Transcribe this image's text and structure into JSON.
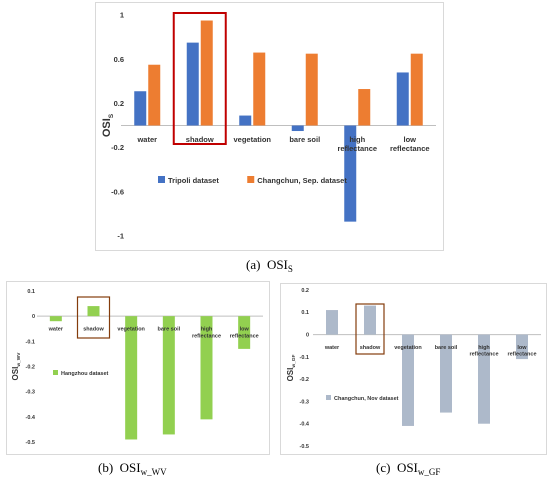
{
  "captions": {
    "a": {
      "label": "(a)",
      "text": "OSI",
      "sub": "S"
    },
    "b": {
      "label": "(b)",
      "text": "OSI",
      "sub": "w_WV"
    },
    "c": {
      "label": "(c)",
      "text": "OSI",
      "sub": "w_GF"
    }
  },
  "chart_data": [
    {
      "id": "a",
      "type": "bar",
      "categories": [
        "water",
        "shadow",
        "vegetation",
        "bare soil",
        "high reflectance",
        "low reflectance"
      ],
      "category_lines": [
        [
          "water"
        ],
        [
          "shadow"
        ],
        [
          "vegetation"
        ],
        [
          "bare soil"
        ],
        [
          "high",
          "reflectance"
        ],
        [
          "low",
          "reflectance"
        ]
      ],
      "series": [
        {
          "name": "Tripoli dataset",
          "values": [
            0.31,
            0.75,
            0.09,
            -0.05,
            -0.87,
            0.48
          ],
          "color": "#4472c4"
        },
        {
          "name": "Changchun, Sep. dataset",
          "values": [
            0.55,
            0.95,
            0.66,
            0.65,
            0.33,
            0.65
          ],
          "color": "#ed7d31"
        }
      ],
      "ylabel": "OSI",
      "ylabel_sub": "S",
      "ylim": [
        -1,
        1
      ],
      "yticks": [
        1,
        0.6,
        0.2,
        -0.2,
        -0.6,
        -1
      ],
      "ytick_labels": [
        "1",
        "0.6",
        "0.2",
        "-0.2",
        "-0.6",
        "-1"
      ],
      "highlight_category": "shadow",
      "highlight_color": "#c00000",
      "legend_position": "lower-center",
      "grid": false
    },
    {
      "id": "b",
      "type": "bar",
      "categories": [
        "water",
        "shadow",
        "vegetation",
        "bare soil",
        "high reflectance",
        "low reflectance"
      ],
      "category_lines": [
        [
          "water"
        ],
        [
          "shadow"
        ],
        [
          "vegetation"
        ],
        [
          "bare soil"
        ],
        [
          "high",
          "reflectance"
        ],
        [
          "low",
          "reflectance"
        ]
      ],
      "series": [
        {
          "name": "Hangzhou dataset",
          "values": [
            -0.02,
            0.04,
            -0.49,
            -0.47,
            -0.41,
            -0.13
          ],
          "color": "#92d050"
        }
      ],
      "ylabel": "OSI",
      "ylabel_sub": "w_WV",
      "ylim": [
        -0.5,
        0.1
      ],
      "yticks": [
        0.1,
        0,
        -0.1,
        -0.2,
        -0.3,
        -0.4,
        -0.5
      ],
      "ytick_labels": [
        "0.1",
        "0",
        "-0.1",
        "-0.2",
        "-0.3",
        "-0.4",
        "-0.5"
      ],
      "highlight_category": "shadow",
      "highlight_color": "#843c0c",
      "legend_position": "left",
      "grid": false
    },
    {
      "id": "c",
      "type": "bar",
      "categories": [
        "water",
        "shadow",
        "vegetation",
        "bare soil",
        "high reflectance",
        "low reflectance"
      ],
      "category_lines": [
        [
          "water"
        ],
        [
          "shadow"
        ],
        [
          "vegetation"
        ],
        [
          "bare soil"
        ],
        [
          "high",
          "reflectance"
        ],
        [
          "low",
          "reflectance"
        ]
      ],
      "series": [
        {
          "name": "Changchun, Nov dataset",
          "values": [
            0.11,
            0.13,
            -0.41,
            -0.35,
            -0.4,
            -0.11
          ],
          "color": "#adb9ca"
        }
      ],
      "ylabel": "OSI",
      "ylabel_sub": "w_GF",
      "ylim": [
        -0.5,
        0.2
      ],
      "yticks": [
        0.2,
        0.1,
        0,
        -0.1,
        -0.2,
        -0.3,
        -0.4,
        -0.5
      ],
      "ytick_labels": [
        "0.2",
        "0.1",
        "0",
        "-0.1",
        "-0.2",
        "-0.3",
        "-0.4",
        "-0.5"
      ],
      "highlight_category": "shadow",
      "highlight_color": "#843c0c",
      "legend_position": "left",
      "grid": false
    }
  ]
}
